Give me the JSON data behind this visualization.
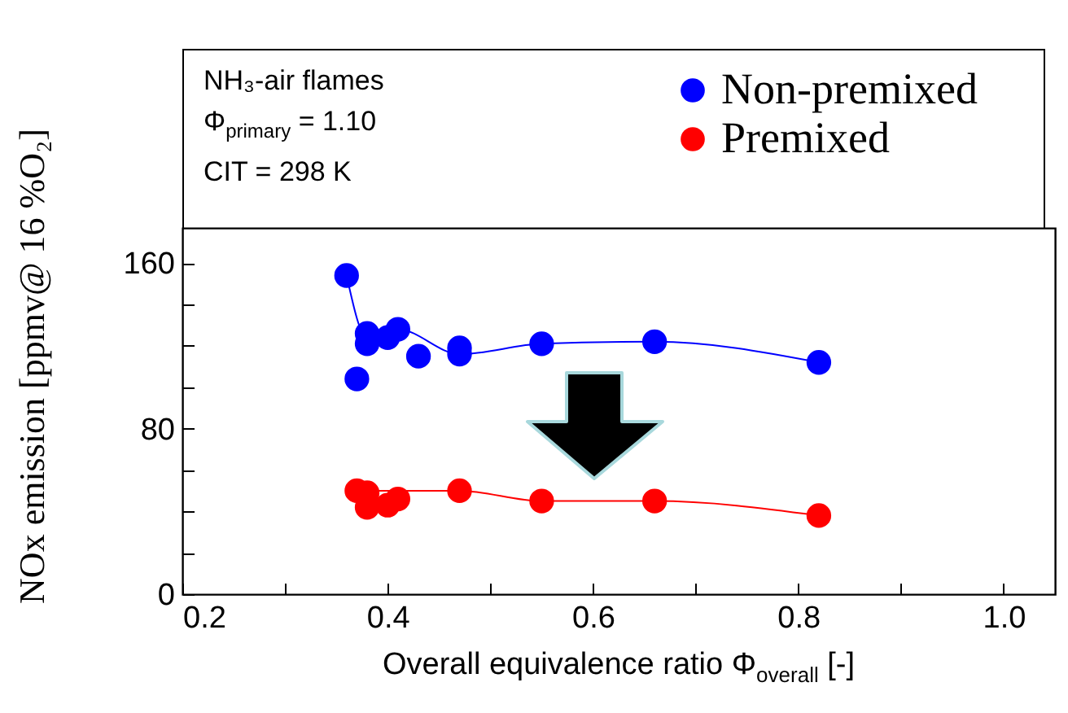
{
  "chart_data": {
    "type": "scatter",
    "xlabel": "Overall equivalence ratio  Φ$_{overall}$ [-]",
    "ylabel": "NOx emission [ppmv@ 16 %O₂]",
    "annotations": [
      "NH₃-air flames",
      "Φ$_{primary}$ = 1.10",
      "CIT = 298 K"
    ],
    "series": [
      {
        "name": "Non-premixed",
        "color": "#0000ff",
        "x": [
          0.36,
          0.37,
          0.38,
          0.38,
          0.4,
          0.41,
          0.43,
          0.47,
          0.47,
          0.55,
          0.66,
          0.82
        ],
        "values": [
          154,
          104,
          126,
          121,
          124,
          128,
          115,
          119,
          116,
          121,
          122,
          112
        ]
      },
      {
        "name": "Premixed",
        "color": "#ff0000",
        "x": [
          0.37,
          0.38,
          0.38,
          0.4,
          0.41,
          0.47,
          0.55,
          0.66,
          0.82
        ],
        "values": [
          50,
          49,
          42,
          43,
          46,
          50,
          45,
          45,
          38
        ]
      },
      {
        "type": "line",
        "marker": "none",
        "color": "#0000ff",
        "x": [
          0.36,
          0.38,
          0.41,
          0.47,
          0.55,
          0.66,
          0.82
        ],
        "values": [
          154,
          124,
          128,
          116,
          121,
          122,
          112
        ]
      },
      {
        "type": "line",
        "marker": "none",
        "color": "#ff0000",
        "x": [
          0.37,
          0.47,
          0.55,
          0.66,
          0.82
        ],
        "values": [
          50,
          50,
          45,
          45,
          38
        ]
      }
    ],
    "xlim": [
      0.2,
      1.05
    ],
    "xticks": [
      0.2,
      {
        "value": 0.3,
        "label": null
      },
      0.4,
      {
        "value": 0.5,
        "label": null
      },
      0.6,
      {
        "value": 0.7,
        "label": null
      },
      0.8,
      {
        "value": 0.9,
        "label": null
      },
      {
        "value": 1,
        "label": "1.0"
      }
    ],
    "ylim": [
      0,
      177
    ],
    "yticks": [
      0,
      {
        "value": 20,
        "label": null
      },
      {
        "value": 40,
        "label": null
      },
      {
        "value": 60,
        "label": null
      },
      80,
      {
        "value": 100,
        "label": null
      },
      {
        "value": 120,
        "label": null
      },
      {
        "value": 140,
        "label": null
      },
      160
    ],
    "marker": "circle",
    "grid": false,
    "legend": "top right"
  }
}
